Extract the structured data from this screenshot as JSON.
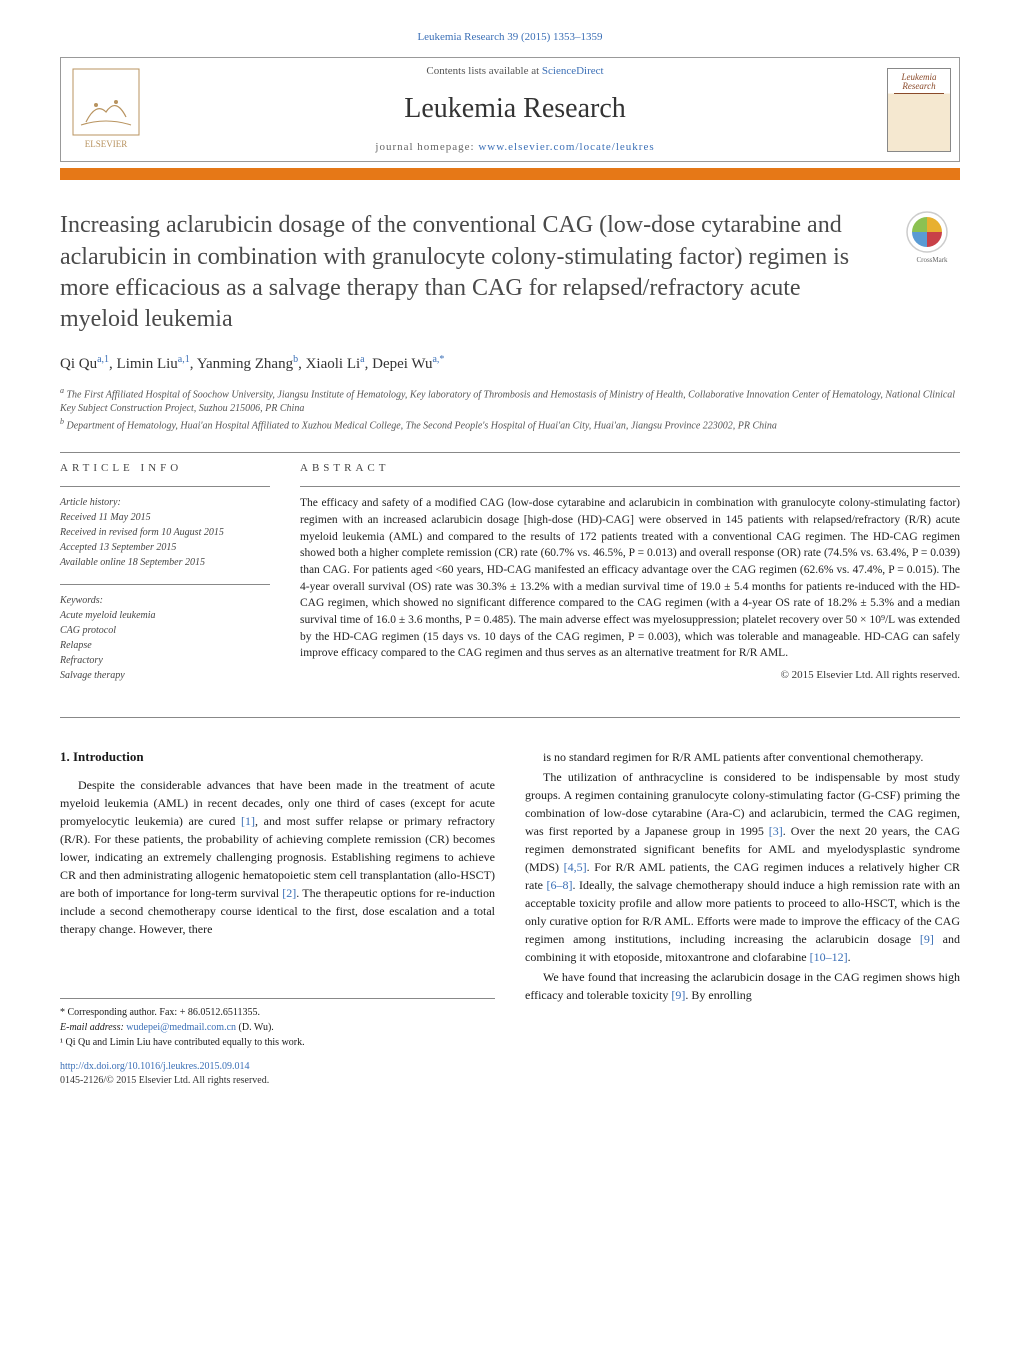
{
  "top_header": "Leukemia Research 39 (2015) 1353–1359",
  "header": {
    "contents_prefix": "Contents lists available at ",
    "contents_link": "ScienceDirect",
    "journal_name": "Leukemia Research",
    "homepage_prefix": "journal homepage: ",
    "homepage_link": "www.elsevier.com/locate/leukres",
    "cover_title": "Leukemia Research"
  },
  "crossmark_label": "CrossMark",
  "article": {
    "title": "Increasing aclarubicin dosage of the conventional CAG (low-dose cytarabine and aclarubicin in combination with granulocyte colony-stimulating factor) regimen is more efficacious as a salvage therapy than CAG for relapsed/refractory acute myeloid leukemia",
    "authors_html": "Qi Qu<sup>a,1</sup>, Limin Liu<sup>a,1</sup>, Yanming Zhang<sup>b</sup>, Xiaoli Li<sup>a</sup>, Depei Wu<sup>a,*</sup>",
    "affiliations": [
      "a The First Affiliated Hospital of Soochow University, Jiangsu Institute of Hematology, Key laboratory of Thrombosis and Hemostasis of Ministry of Health, Collaborative Innovation Center of Hematology, National Clinical Key Subject Construction Project, Suzhou 215006, PR China",
      "b Department of Hematology, Huai'an Hospital Affiliated to Xuzhou Medical College, The Second People's Hospital of Huai'an City, Huai'an, Jiangsu Province 223002, PR China"
    ]
  },
  "info": {
    "heading": "ARTICLE INFO",
    "history_label": "Article history:",
    "history": [
      "Received 11 May 2015",
      "Received in revised form 10 August 2015",
      "Accepted 13 September 2015",
      "Available online 18 September 2015"
    ],
    "keywords_label": "Keywords:",
    "keywords": [
      "Acute myeloid leukemia",
      "CAG protocol",
      "Relapse",
      "Refractory",
      "Salvage therapy"
    ]
  },
  "abstract": {
    "heading": "ABSTRACT",
    "text": "The efficacy and safety of a modified CAG (low-dose cytarabine and aclarubicin in combination with granulocyte colony-stimulating factor) regimen with an increased aclarubicin dosage [high-dose (HD)-CAG] were observed in 145 patients with relapsed/refractory (R/R) acute myeloid leukemia (AML) and compared to the results of 172 patients treated with a conventional CAG regimen. The HD-CAG regimen showed both a higher complete remission (CR) rate (60.7% vs. 46.5%, P = 0.013) and overall response (OR) rate (74.5% vs. 63.4%, P = 0.039) than CAG. For patients aged <60 years, HD-CAG manifested an efficacy advantage over the CAG regimen (62.6% vs. 47.4%, P = 0.015). The 4-year overall survival (OS) rate was 30.3% ± 13.2% with a median survival time of 19.0 ± 5.4 months for patients re-induced with the HD-CAG regimen, which showed no significant difference compared to the CAG regimen (with a 4-year OS rate of 18.2% ± 5.3% and a median survival time of 16.0 ± 3.6 months, P = 0.485). The main adverse effect was myelosuppression; platelet recovery over 50 × 10⁹/L was extended by the HD-CAG regimen (15 days vs. 10 days of the CAG regimen, P = 0.003), which was tolerable and manageable. HD-CAG can safely improve efficacy compared to the CAG regimen and thus serves as an alternative treatment for R/R AML.",
    "copyright": "© 2015 Elsevier Ltd. All rights reserved."
  },
  "intro": {
    "heading": "1. Introduction",
    "left_paragraphs": [
      "Despite the considerable advances that have been made in the treatment of acute myeloid leukemia (AML) in recent decades, only one third of cases (except for acute promyelocytic leukemia) are cured [1], and most suffer relapse or primary refractory (R/R). For these patients, the probability of achieving complete remission (CR) becomes lower, indicating an extremely challenging prognosis. Establishing regimens to achieve CR and then administrating allogenic hematopoietic stem cell transplantation (allo-HSCT) are both of importance for long-term survival [2]. The therapeutic options for re-induction include a second chemotherapy course identical to the first, dose escalation and a total therapy change. However, there"
    ],
    "right_paragraphs": [
      "is no standard regimen for R/R AML patients after conventional chemotherapy.",
      "The utilization of anthracycline is considered to be indispensable by most study groups. A regimen containing granulocyte colony-stimulating factor (G-CSF) priming the combination of low-dose cytarabine (Ara-C) and aclarubicin, termed the CAG regimen, was first reported by a Japanese group in 1995 [3]. Over the next 20 years, the CAG regimen demonstrated significant benefits for AML and myelodysplastic syndrome (MDS) [4,5]. For R/R AML patients, the CAG regimen induces a relatively higher CR rate [6–8]. Ideally, the salvage chemotherapy should induce a high remission rate with an acceptable toxicity profile and allow more patients to proceed to allo-HSCT, which is the only curative option for R/R AML. Efforts were made to improve the efficacy of the CAG regimen among institutions, including increasing the aclarubicin dosage [9] and combining it with etoposide, mitoxantrone and clofarabine [10–12].",
      "We have found that increasing the aclarubicin dosage in the CAG regimen shows high efficacy and tolerable toxicity [9]. By enrolling"
    ]
  },
  "footnotes": {
    "corresponding": "* Corresponding author. Fax: + 86.0512.6511355.",
    "email_label": "E-mail address: ",
    "email": "wudepei@medmail.com.cn",
    "email_suffix": " (D. Wu).",
    "equal": "¹ Qi Qu and Limin Liu have contributed equally to this work."
  },
  "footer": {
    "doi": "http://dx.doi.org/10.1016/j.leukres.2015.09.014",
    "copyright": "0145-2126/© 2015 Elsevier Ltd. All rights reserved."
  },
  "colors": {
    "link": "#3b6fb6",
    "orange_bar": "#e67817",
    "text": "#1a1a1a",
    "gray": "#555555"
  }
}
